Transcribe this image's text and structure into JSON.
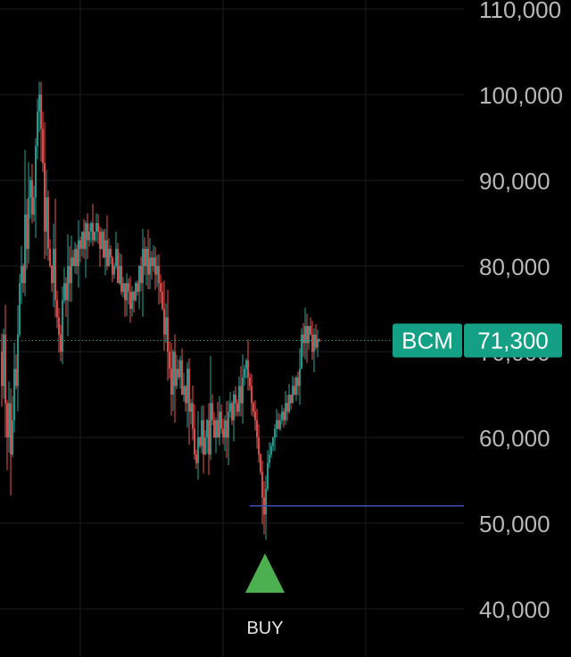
{
  "chart_data": {
    "type": "candlestick",
    "symbol": "BCM",
    "last_price_label": "71,300",
    "last_price": 71300,
    "ylim": [
      36000,
      112000
    ],
    "y_ticks": [
      40000,
      50000,
      60000,
      70000,
      80000,
      90000,
      100000,
      110000
    ],
    "y_tick_labels": [
      "40,000",
      "50,000",
      "60,000",
      "70,000",
      "80,000",
      "90,000",
      "100,000",
      "110,000"
    ],
    "grid": true,
    "colors": {
      "up": "#26a69a",
      "down": "#ef5350",
      "support_line": "#3f51b5",
      "tag": "#14a085",
      "buy": "#4caf50",
      "grid": "#1c1c1c",
      "last_price_line": "#2e9e86"
    },
    "support_level": 52000,
    "signal": {
      "label": "BUY",
      "icon": "triangle-up-icon"
    },
    "path": [
      [
        0,
        70000
      ],
      [
        2,
        66000
      ],
      [
        4,
        72000
      ],
      [
        6,
        64000
      ],
      [
        8,
        60000
      ],
      [
        10,
        64000
      ],
      [
        12,
        58000
      ],
      [
        14,
        62000
      ],
      [
        16,
        68000
      ],
      [
        18,
        66000
      ],
      [
        20,
        72000
      ],
      [
        22,
        78000
      ],
      [
        24,
        80000
      ],
      [
        26,
        78000
      ],
      [
        28,
        86000
      ],
      [
        30,
        82000
      ],
      [
        32,
        88000
      ],
      [
        34,
        90000
      ],
      [
        36,
        86000
      ],
      [
        38,
        88000
      ],
      [
        40,
        94000
      ],
      [
        42,
        98000
      ],
      [
        44,
        100000
      ],
      [
        46,
        96000
      ],
      [
        48,
        92000
      ],
      [
        50,
        84000
      ],
      [
        52,
        88000
      ],
      [
        54,
        82000
      ],
      [
        56,
        80000
      ],
      [
        58,
        78000
      ],
      [
        60,
        82000
      ],
      [
        62,
        76000
      ],
      [
        64,
        74000
      ],
      [
        66,
        72000
      ],
      [
        68,
        70000
      ],
      [
        70,
        76000
      ],
      [
        72,
        78000
      ],
      [
        74,
        76000
      ],
      [
        76,
        80000
      ],
      [
        78,
        78000
      ],
      [
        80,
        81000
      ],
      [
        82,
        80000
      ],
      [
        84,
        82000
      ],
      [
        86,
        80000
      ],
      [
        88,
        83000
      ],
      [
        90,
        82000
      ],
      [
        92,
        84000
      ],
      [
        94,
        82000
      ],
      [
        96,
        85000
      ],
      [
        98,
        83000
      ],
      [
        100,
        84000
      ],
      [
        102,
        85000
      ],
      [
        104,
        83000
      ],
      [
        106,
        84000
      ],
      [
        108,
        85000
      ],
      [
        110,
        84000
      ],
      [
        112,
        82000
      ],
      [
        114,
        84000
      ],
      [
        116,
        81000
      ],
      [
        118,
        83000
      ],
      [
        120,
        80000
      ],
      [
        122,
        82000
      ],
      [
        124,
        81000
      ],
      [
        126,
        79000
      ],
      [
        128,
        80000
      ],
      [
        130,
        82000
      ],
      [
        132,
        78000
      ],
      [
        134,
        80000
      ],
      [
        136,
        77000
      ],
      [
        138,
        78000
      ],
      [
        140,
        76000
      ],
      [
        142,
        78000
      ],
      [
        144,
        77000
      ],
      [
        146,
        75000
      ],
      [
        148,
        77000
      ],
      [
        150,
        76000
      ],
      [
        152,
        78000
      ],
      [
        154,
        77000
      ],
      [
        156,
        80000
      ],
      [
        158,
        78000
      ],
      [
        160,
        82000
      ],
      [
        162,
        80000
      ],
      [
        164,
        82000
      ],
      [
        166,
        79000
      ],
      [
        168,
        81000
      ],
      [
        170,
        80000
      ],
      [
        172,
        81000
      ],
      [
        174,
        79000
      ],
      [
        176,
        80000
      ],
      [
        178,
        78000
      ],
      [
        180,
        77000
      ],
      [
        182,
        75000
      ],
      [
        184,
        72000
      ],
      [
        186,
        74000
      ],
      [
        188,
        70000
      ],
      [
        190,
        68000
      ],
      [
        192,
        65000
      ],
      [
        194,
        70000
      ],
      [
        196,
        66000
      ],
      [
        198,
        68000
      ],
      [
        200,
        67000
      ],
      [
        202,
        69000
      ],
      [
        204,
        65000
      ],
      [
        206,
        66000
      ],
      [
        208,
        64000
      ],
      [
        210,
        68000
      ],
      [
        212,
        63000
      ],
      [
        214,
        64000
      ],
      [
        216,
        61000
      ],
      [
        218,
        58000
      ],
      [
        220,
        57000
      ],
      [
        222,
        60000
      ],
      [
        224,
        59000
      ],
      [
        226,
        62000
      ],
      [
        228,
        58000
      ],
      [
        230,
        60000
      ],
      [
        232,
        62000
      ],
      [
        234,
        58000
      ],
      [
        236,
        64000
      ],
      [
        238,
        62000
      ],
      [
        240,
        60000
      ],
      [
        242,
        62000
      ],
      [
        244,
        60000
      ],
      [
        246,
        63000
      ],
      [
        248,
        61000
      ],
      [
        250,
        60000
      ],
      [
        252,
        62000
      ],
      [
        254,
        60000
      ],
      [
        256,
        63000
      ],
      [
        258,
        64000
      ],
      [
        260,
        62000
      ],
      [
        262,
        65000
      ],
      [
        264,
        64000
      ],
      [
        266,
        63000
      ],
      [
        268,
        66000
      ],
      [
        270,
        64000
      ],
      [
        272,
        67000
      ],
      [
        274,
        68000
      ],
      [
        276,
        69000
      ],
      [
        278,
        67000
      ],
      [
        280,
        66000
      ],
      [
        282,
        64000
      ],
      [
        284,
        63000
      ],
      [
        286,
        62000
      ],
      [
        288,
        60000
      ],
      [
        290,
        58000
      ],
      [
        292,
        56000
      ],
      [
        294,
        53000
      ],
      [
        296,
        51000
      ],
      [
        298,
        54000
      ],
      [
        300,
        57000
      ],
      [
        302,
        58000
      ],
      [
        304,
        59000
      ],
      [
        306,
        60000
      ],
      [
        308,
        61000
      ],
      [
        310,
        62000
      ],
      [
        312,
        61000
      ],
      [
        314,
        62000
      ],
      [
        316,
        63000
      ],
      [
        318,
        62000
      ],
      [
        320,
        64000
      ],
      [
        322,
        63000
      ],
      [
        324,
        65000
      ],
      [
        326,
        64000
      ],
      [
        328,
        66000
      ],
      [
        330,
        65000
      ],
      [
        332,
        67000
      ],
      [
        334,
        66000
      ],
      [
        336,
        68000
      ],
      [
        338,
        72000
      ],
      [
        340,
        71000
      ],
      [
        342,
        73000
      ],
      [
        344,
        71000
      ],
      [
        346,
        73000
      ],
      [
        348,
        72000
      ],
      [
        350,
        70000
      ],
      [
        352,
        72000
      ],
      [
        354,
        70500
      ],
      [
        356,
        71500
      ],
      [
        358,
        71300
      ]
    ]
  }
}
